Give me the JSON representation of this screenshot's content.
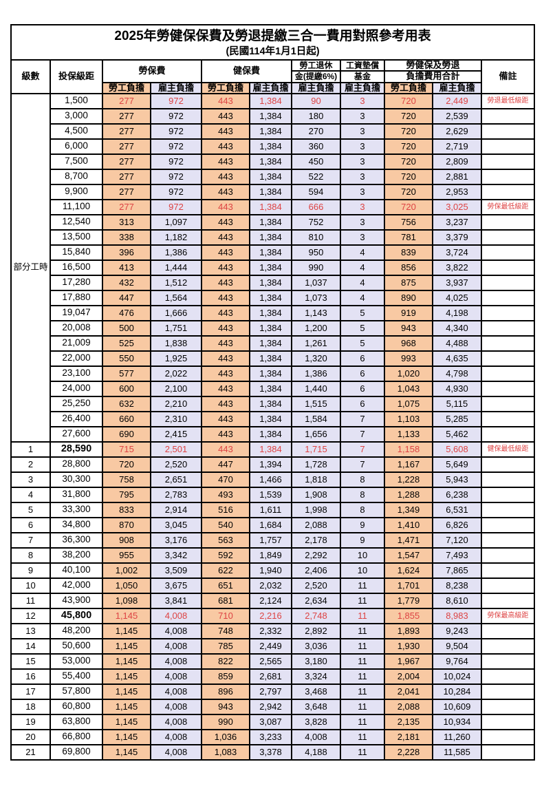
{
  "title": "2025年勞健保保費及勞退提繳三合一費用對照參考用表",
  "subtitle": "(民國114年1月1日起)",
  "colors": {
    "employee_fill": "#F8C9A3",
    "employer_fill": "#E3E2F4",
    "highlight_red": "#DD4343",
    "border": "#000000"
  },
  "header": {
    "level": "級數",
    "bracket": "投保級距",
    "labor_fee": "勞保費",
    "health_fee": "健保費",
    "pension_top": "勞工退休",
    "pension_bottom": "金(提繳6%)",
    "wage_fund_top": "工資墊償",
    "wage_fund_bottom": "基金",
    "total_top": "勞健保及勞退",
    "total_bottom": "負擔費用合計",
    "remark": "備註",
    "employee_share": "勞工負擔",
    "employer_share": "雇主負擔"
  },
  "part_time_label": "部分工時",
  "rows": [
    {
      "level": "",
      "bracket": "1,500",
      "cells": [
        "277",
        "972",
        "443",
        "1,384",
        "90",
        "3",
        "720",
        "2,449"
      ],
      "remark": "勞退最低級距",
      "red": true,
      "bold": false
    },
    {
      "level": "",
      "bracket": "3,000",
      "cells": [
        "277",
        "972",
        "443",
        "1,384",
        "180",
        "3",
        "720",
        "2,539"
      ],
      "remark": "",
      "red": false,
      "bold": false
    },
    {
      "level": "",
      "bracket": "4,500",
      "cells": [
        "277",
        "972",
        "443",
        "1,384",
        "270",
        "3",
        "720",
        "2,629"
      ],
      "remark": "",
      "red": false,
      "bold": false
    },
    {
      "level": "",
      "bracket": "6,000",
      "cells": [
        "277",
        "972",
        "443",
        "1,384",
        "360",
        "3",
        "720",
        "2,719"
      ],
      "remark": "",
      "red": false,
      "bold": false
    },
    {
      "level": "",
      "bracket": "7,500",
      "cells": [
        "277",
        "972",
        "443",
        "1,384",
        "450",
        "3",
        "720",
        "2,809"
      ],
      "remark": "",
      "red": false,
      "bold": false
    },
    {
      "level": "",
      "bracket": "8,700",
      "cells": [
        "277",
        "972",
        "443",
        "1,384",
        "522",
        "3",
        "720",
        "2,881"
      ],
      "remark": "",
      "red": false,
      "bold": false
    },
    {
      "level": "",
      "bracket": "9,900",
      "cells": [
        "277",
        "972",
        "443",
        "1,384",
        "594",
        "3",
        "720",
        "2,953"
      ],
      "remark": "",
      "red": false,
      "bold": false
    },
    {
      "level": "",
      "bracket": "11,100",
      "cells": [
        "277",
        "972",
        "443",
        "1,384",
        "666",
        "3",
        "720",
        "3,025"
      ],
      "remark": "勞保最低級距",
      "red": true,
      "bold": false
    },
    {
      "level": "",
      "bracket": "12,540",
      "cells": [
        "313",
        "1,097",
        "443",
        "1,384",
        "752",
        "3",
        "756",
        "3,237"
      ],
      "remark": "",
      "red": false,
      "bold": false
    },
    {
      "level": "",
      "bracket": "13,500",
      "cells": [
        "338",
        "1,182",
        "443",
        "1,384",
        "810",
        "3",
        "781",
        "3,379"
      ],
      "remark": "",
      "red": false,
      "bold": false
    },
    {
      "level": "",
      "bracket": "15,840",
      "cells": [
        "396",
        "1,386",
        "443",
        "1,384",
        "950",
        "4",
        "839",
        "3,724"
      ],
      "remark": "",
      "red": false,
      "bold": false
    },
    {
      "level": "",
      "bracket": "16,500",
      "cells": [
        "413",
        "1,444",
        "443",
        "1,384",
        "990",
        "4",
        "856",
        "3,822"
      ],
      "remark": "",
      "red": false,
      "bold": false
    },
    {
      "level": "",
      "bracket": "17,280",
      "cells": [
        "432",
        "1,512",
        "443",
        "1,384",
        "1,037",
        "4",
        "875",
        "3,937"
      ],
      "remark": "",
      "red": false,
      "bold": false
    },
    {
      "level": "",
      "bracket": "17,880",
      "cells": [
        "447",
        "1,564",
        "443",
        "1,384",
        "1,073",
        "4",
        "890",
        "4,025"
      ],
      "remark": "",
      "red": false,
      "bold": false
    },
    {
      "level": "",
      "bracket": "19,047",
      "cells": [
        "476",
        "1,666",
        "443",
        "1,384",
        "1,143",
        "5",
        "919",
        "4,198"
      ],
      "remark": "",
      "red": false,
      "bold": false
    },
    {
      "level": "",
      "bracket": "20,008",
      "cells": [
        "500",
        "1,751",
        "443",
        "1,384",
        "1,200",
        "5",
        "943",
        "4,340"
      ],
      "remark": "",
      "red": false,
      "bold": false
    },
    {
      "level": "",
      "bracket": "21,009",
      "cells": [
        "525",
        "1,838",
        "443",
        "1,384",
        "1,261",
        "5",
        "968",
        "4,488"
      ],
      "remark": "",
      "red": false,
      "bold": false
    },
    {
      "level": "",
      "bracket": "22,000",
      "cells": [
        "550",
        "1,925",
        "443",
        "1,384",
        "1,320",
        "6",
        "993",
        "4,635"
      ],
      "remark": "",
      "red": false,
      "bold": false
    },
    {
      "level": "",
      "bracket": "23,100",
      "cells": [
        "577",
        "2,022",
        "443",
        "1,384",
        "1,386",
        "6",
        "1,020",
        "4,798"
      ],
      "remark": "",
      "red": false,
      "bold": false
    },
    {
      "level": "",
      "bracket": "24,000",
      "cells": [
        "600",
        "2,100",
        "443",
        "1,384",
        "1,440",
        "6",
        "1,043",
        "4,930"
      ],
      "remark": "",
      "red": false,
      "bold": false
    },
    {
      "level": "",
      "bracket": "25,250",
      "cells": [
        "632",
        "2,210",
        "443",
        "1,384",
        "1,515",
        "6",
        "1,075",
        "5,115"
      ],
      "remark": "",
      "red": false,
      "bold": false
    },
    {
      "level": "",
      "bracket": "26,400",
      "cells": [
        "660",
        "2,310",
        "443",
        "1,384",
        "1,584",
        "7",
        "1,103",
        "5,285"
      ],
      "remark": "",
      "red": false,
      "bold": false
    },
    {
      "level": "",
      "bracket": "27,600",
      "cells": [
        "690",
        "2,415",
        "443",
        "1,384",
        "1,656",
        "7",
        "1,133",
        "5,462"
      ],
      "remark": "",
      "red": false,
      "bold": false
    },
    {
      "level": "1",
      "bracket": "28,590",
      "cells": [
        "715",
        "2,501",
        "443",
        "1,384",
        "1,715",
        "7",
        "1,158",
        "5,608"
      ],
      "remark": "健保最低級距",
      "red": true,
      "bold": true
    },
    {
      "level": "2",
      "bracket": "28,800",
      "cells": [
        "720",
        "2,520",
        "447",
        "1,394",
        "1,728",
        "7",
        "1,167",
        "5,649"
      ],
      "remark": "",
      "red": false,
      "bold": false
    },
    {
      "level": "3",
      "bracket": "30,300",
      "cells": [
        "758",
        "2,651",
        "470",
        "1,466",
        "1,818",
        "8",
        "1,228",
        "5,943"
      ],
      "remark": "",
      "red": false,
      "bold": false
    },
    {
      "level": "4",
      "bracket": "31,800",
      "cells": [
        "795",
        "2,783",
        "493",
        "1,539",
        "1,908",
        "8",
        "1,288",
        "6,238"
      ],
      "remark": "",
      "red": false,
      "bold": false
    },
    {
      "level": "5",
      "bracket": "33,300",
      "cells": [
        "833",
        "2,914",
        "516",
        "1,611",
        "1,998",
        "8",
        "1,349",
        "6,531"
      ],
      "remark": "",
      "red": false,
      "bold": false
    },
    {
      "level": "6",
      "bracket": "34,800",
      "cells": [
        "870",
        "3,045",
        "540",
        "1,684",
        "2,088",
        "9",
        "1,410",
        "6,826"
      ],
      "remark": "",
      "red": false,
      "bold": false
    },
    {
      "level": "7",
      "bracket": "36,300",
      "cells": [
        "908",
        "3,176",
        "563",
        "1,757",
        "2,178",
        "9",
        "1,471",
        "7,120"
      ],
      "remark": "",
      "red": false,
      "bold": false
    },
    {
      "level": "8",
      "bracket": "38,200",
      "cells": [
        "955",
        "3,342",
        "592",
        "1,849",
        "2,292",
        "10",
        "1,547",
        "7,493"
      ],
      "remark": "",
      "red": false,
      "bold": false
    },
    {
      "level": "9",
      "bracket": "40,100",
      "cells": [
        "1,002",
        "3,509",
        "622",
        "1,940",
        "2,406",
        "10",
        "1,624",
        "7,865"
      ],
      "remark": "",
      "red": false,
      "bold": false
    },
    {
      "level": "10",
      "bracket": "42,000",
      "cells": [
        "1,050",
        "3,675",
        "651",
        "2,032",
        "2,520",
        "11",
        "1,701",
        "8,238"
      ],
      "remark": "",
      "red": false,
      "bold": false
    },
    {
      "level": "11",
      "bracket": "43,900",
      "cells": [
        "1,098",
        "3,841",
        "681",
        "2,124",
        "2,634",
        "11",
        "1,779",
        "8,610"
      ],
      "remark": "",
      "red": false,
      "bold": false
    },
    {
      "level": "12",
      "bracket": "45,800",
      "cells": [
        "1,145",
        "4,008",
        "710",
        "2,216",
        "2,748",
        "11",
        "1,855",
        "8,983"
      ],
      "remark": "勞保最高級距",
      "red": true,
      "bold": true
    },
    {
      "level": "13",
      "bracket": "48,200",
      "cells": [
        "1,145",
        "4,008",
        "748",
        "2,332",
        "2,892",
        "11",
        "1,893",
        "9,243"
      ],
      "remark": "",
      "red": false,
      "bold": false
    },
    {
      "level": "14",
      "bracket": "50,600",
      "cells": [
        "1,145",
        "4,008",
        "785",
        "2,449",
        "3,036",
        "11",
        "1,930",
        "9,504"
      ],
      "remark": "",
      "red": false,
      "bold": false
    },
    {
      "level": "15",
      "bracket": "53,000",
      "cells": [
        "1,145",
        "4,008",
        "822",
        "2,565",
        "3,180",
        "11",
        "1,967",
        "9,764"
      ],
      "remark": "",
      "red": false,
      "bold": false
    },
    {
      "level": "16",
      "bracket": "55,400",
      "cells": [
        "1,145",
        "4,008",
        "859",
        "2,681",
        "3,324",
        "11",
        "2,004",
        "10,024"
      ],
      "remark": "",
      "red": false,
      "bold": false
    },
    {
      "level": "17",
      "bracket": "57,800",
      "cells": [
        "1,145",
        "4,008",
        "896",
        "2,797",
        "3,468",
        "11",
        "2,041",
        "10,284"
      ],
      "remark": "",
      "red": false,
      "bold": false
    },
    {
      "level": "18",
      "bracket": "60,800",
      "cells": [
        "1,145",
        "4,008",
        "943",
        "2,942",
        "3,648",
        "11",
        "2,088",
        "10,609"
      ],
      "remark": "",
      "red": false,
      "bold": false
    },
    {
      "level": "19",
      "bracket": "63,800",
      "cells": [
        "1,145",
        "4,008",
        "990",
        "3,087",
        "3,828",
        "11",
        "2,135",
        "10,934"
      ],
      "remark": "",
      "red": false,
      "bold": false
    },
    {
      "level": "20",
      "bracket": "66,800",
      "cells": [
        "1,145",
        "4,008",
        "1,036",
        "3,233",
        "4,008",
        "11",
        "2,181",
        "11,260"
      ],
      "remark": "",
      "red": false,
      "bold": false
    },
    {
      "level": "21",
      "bracket": "69,800",
      "cells": [
        "1,145",
        "4,008",
        "1,083",
        "3,378",
        "4,188",
        "11",
        "2,228",
        "11,585"
      ],
      "remark": "",
      "red": false,
      "bold": false
    }
  ]
}
